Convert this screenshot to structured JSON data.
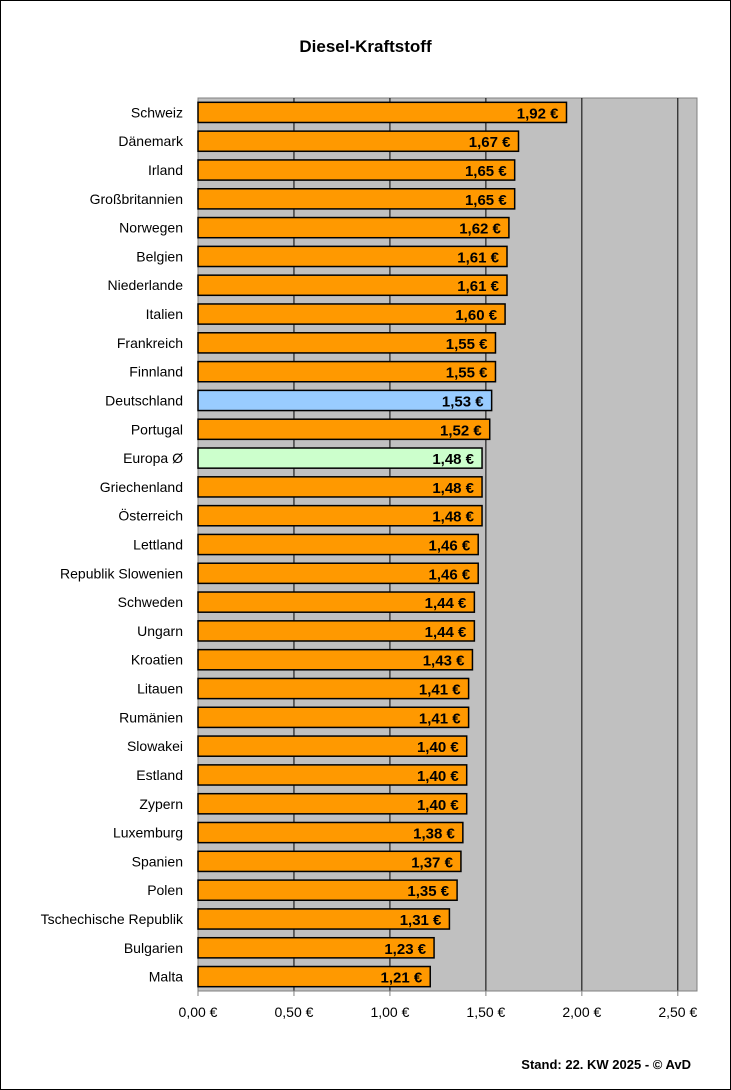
{
  "chart_data": {
    "type": "bar",
    "orientation": "horizontal",
    "title": "Diesel-Kraftstoff",
    "xlabel": "",
    "ylabel": "",
    "xlim": [
      0,
      2.6
    ],
    "x_ticks": [
      0,
      0.5,
      1.0,
      1.5,
      2.0,
      2.5
    ],
    "x_tick_labels": [
      "0,00 €",
      "0,50 €",
      "1,00 €",
      "1,50 €",
      "2,00 €",
      "2,50 €"
    ],
    "grid": "vertical major gridlines",
    "value_suffix": " €",
    "categories": [
      "Schweiz",
      "Dänemark",
      "Irland",
      "Großbritannien",
      "Norwegen",
      "Belgien",
      "Niederlande",
      "Italien",
      "Frankreich",
      "Finnland",
      "Deutschland",
      "Portugal",
      "Europa Ø",
      "Griechenland",
      "Österreich",
      "Lettland",
      "Republik Slowenien",
      "Schweden",
      "Ungarn",
      "Kroatien",
      "Litauen",
      "Rumänien",
      "Slowakei",
      "Estland",
      "Zypern",
      "Luxemburg",
      "Spanien",
      "Polen",
      "Tschechische Republik",
      "Bulgarien",
      "Malta"
    ],
    "values": [
      1.92,
      1.67,
      1.65,
      1.65,
      1.62,
      1.61,
      1.61,
      1.6,
      1.55,
      1.55,
      1.53,
      1.52,
      1.48,
      1.48,
      1.48,
      1.46,
      1.46,
      1.44,
      1.44,
      1.43,
      1.41,
      1.41,
      1.4,
      1.4,
      1.4,
      1.38,
      1.37,
      1.35,
      1.31,
      1.23,
      1.21
    ],
    "value_labels": [
      "1,92 €",
      "1,67 €",
      "1,65 €",
      "1,65 €",
      "1,62 €",
      "1,61 €",
      "1,61 €",
      "1,60 €",
      "1,55 €",
      "1,55 €",
      "1,53 €",
      "1,52 €",
      "1,48 €",
      "1,48 €",
      "1,48 €",
      "1,46 €",
      "1,46 €",
      "1,44 €",
      "1,44 €",
      "1,43 €",
      "1,41 €",
      "1,41 €",
      "1,40 €",
      "1,40 €",
      "1,40 €",
      "1,38 €",
      "1,37 €",
      "1,35 €",
      "1,31 €",
      "1,23 €",
      "1,21 €"
    ],
    "colors": {
      "default_bar": "#FF9900",
      "highlight_Deutschland": "#99CCFF",
      "highlight_Europa": "#CCFFCC",
      "plot_background": "#C0C0C0",
      "gridline": "#000000"
    }
  },
  "footer": {
    "note": "Stand: 22. KW 2025 - © AvD"
  }
}
